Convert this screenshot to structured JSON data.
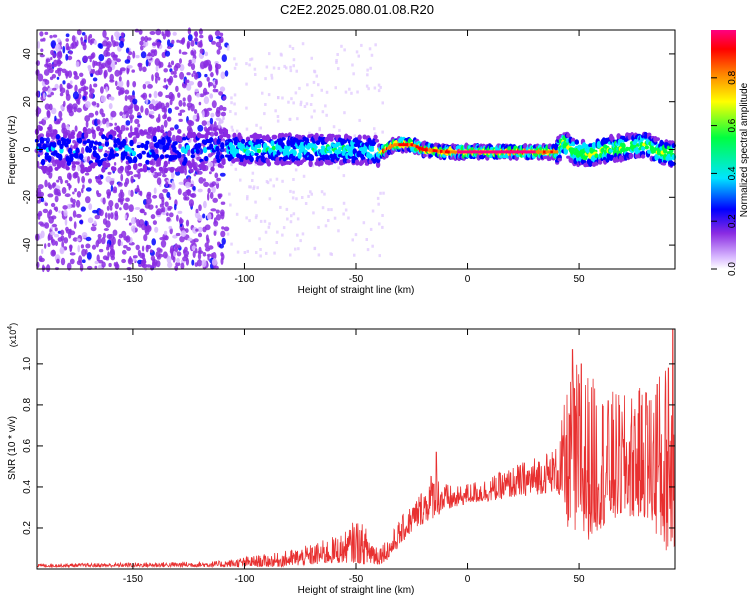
{
  "title": "C2E2.2025.080.01.08.R20",
  "chart_data": [
    {
      "type": "heatmap",
      "xlabel": "Height of straight line (km)",
      "ylabel": "Frequency (Hz)",
      "xlim": [
        -193,
        93
      ],
      "ylim": [
        -50,
        50
      ],
      "xticks": [
        -150,
        -100,
        -50,
        0,
        50
      ],
      "yticks": [
        -40,
        -20,
        0,
        20,
        40
      ],
      "colorbar": {
        "label": "Normalized spectral amplitude",
        "range": [
          0,
          1
        ],
        "ticks": [
          0.0,
          0.2,
          0.4,
          0.6,
          0.8
        ],
        "colormap": [
          "#ffffff",
          "#d8b8ff",
          "#8a2be2",
          "#0000ff",
          "#00e5ff",
          "#00ff40",
          "#ffff00",
          "#ff8000",
          "#ff0000",
          "#ff0080"
        ]
      },
      "ridge": {
        "description_free_values": true,
        "points": [
          [
            -193,
            0
          ],
          [
            -110,
            0
          ],
          [
            -50,
            0
          ],
          [
            -38,
            -1
          ],
          [
            -33,
            2
          ],
          [
            -25,
            2
          ],
          [
            -20,
            0
          ],
          [
            -10,
            -1
          ],
          [
            0,
            -1
          ],
          [
            20,
            -1
          ],
          [
            40,
            -1
          ],
          [
            43,
            3
          ],
          [
            48,
            -1
          ],
          [
            55,
            -2
          ],
          [
            62,
            0
          ],
          [
            70,
            1
          ],
          [
            80,
            2
          ],
          [
            86,
            -1
          ],
          [
            93,
            -2
          ]
        ]
      }
    },
    {
      "type": "line",
      "xlabel": "Height of straight line (km)",
      "ylabel": "SNR (10 * v/v)",
      "multiplier_label": "(x10",
      "multiplier_exp": "4",
      "multiplier_close": ")",
      "xlim": [
        -193,
        93
      ],
      "ylim": [
        0,
        1.17
      ],
      "xticks": [
        -150,
        -100,
        -50,
        0,
        50
      ],
      "yticks": [
        0.2,
        0.4,
        0.6,
        0.8,
        1.0
      ],
      "color": "#e83030",
      "envelope": [
        [
          -193,
          0.01,
          0.025
        ],
        [
          -160,
          0.01,
          0.03
        ],
        [
          -130,
          0.01,
          0.035
        ],
        [
          -110,
          0.01,
          0.04
        ],
        [
          -100,
          0.01,
          0.06
        ],
        [
          -85,
          0.01,
          0.08
        ],
        [
          -70,
          0.02,
          0.12
        ],
        [
          -55,
          0.03,
          0.18
        ],
        [
          -50,
          0.03,
          0.25
        ],
        [
          -45,
          0.02,
          0.2
        ],
        [
          -40,
          0.02,
          0.12
        ],
        [
          -35,
          0.05,
          0.16
        ],
        [
          -30,
          0.12,
          0.25
        ],
        [
          -25,
          0.18,
          0.32
        ],
        [
          -20,
          0.22,
          0.4
        ],
        [
          -15,
          0.25,
          0.5
        ],
        [
          -10,
          0.28,
          0.42
        ],
        [
          -5,
          0.3,
          0.4
        ],
        [
          0,
          0.32,
          0.42
        ],
        [
          10,
          0.33,
          0.45
        ],
        [
          20,
          0.35,
          0.5
        ],
        [
          30,
          0.36,
          0.55
        ],
        [
          40,
          0.38,
          0.6
        ],
        [
          45,
          0.2,
          0.9
        ],
        [
          50,
          0.1,
          1.05
        ],
        [
          55,
          0.15,
          0.95
        ],
        [
          60,
          0.2,
          0.9
        ],
        [
          70,
          0.25,
          0.85
        ],
        [
          80,
          0.25,
          0.9
        ],
        [
          88,
          0.1,
          1.0
        ],
        [
          93,
          0.05,
          1.15
        ]
      ],
      "peaks": [
        [
          -14,
          0.57
        ],
        [
          47,
          1.07
        ],
        [
          51,
          1.0
        ],
        [
          57,
          0.88
        ],
        [
          63,
          0.82
        ],
        [
          75,
          0.78
        ],
        [
          80,
          0.86
        ],
        [
          85,
          0.9
        ],
        [
          90,
          0.98
        ],
        [
          92,
          1.17
        ]
      ]
    }
  ]
}
